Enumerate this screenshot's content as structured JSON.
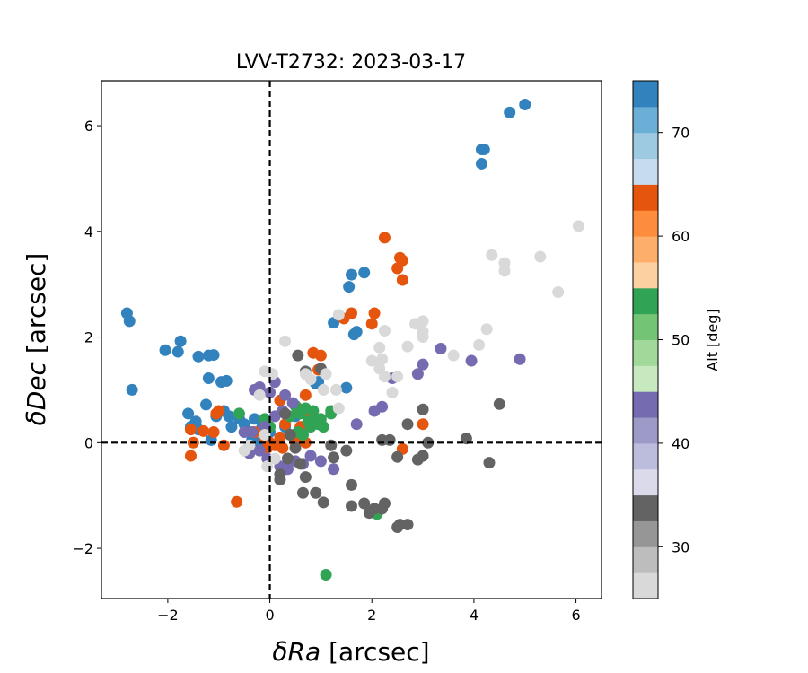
{
  "chart_data": {
    "type": "scatter",
    "title": "LVV-T2732: 2023-03-17",
    "xlabel_sym": "δRa",
    "xlabel_unit": " [arcsec]",
    "ylabel_sym": "δDec",
    "ylabel_unit": " [arcsec]",
    "xlim": [
      -3.3,
      6.5
    ],
    "ylim": [
      -2.95,
      6.85
    ],
    "xticks": [
      -2,
      0,
      2,
      4,
      6
    ],
    "yticks": [
      -2,
      0,
      2,
      4,
      6
    ],
    "xtick_labels": [
      "−2",
      "0",
      "2",
      "4",
      "6"
    ],
    "ytick_labels": [
      "−2",
      "0",
      "2",
      "4",
      "6"
    ],
    "reference_lines": {
      "x": 0,
      "y": 0,
      "style": "dashed"
    },
    "colorbar": {
      "label": "Alt [deg]",
      "range": [
        25,
        75
      ],
      "ticks": [
        30,
        40,
        50,
        60,
        70
      ],
      "tick_labels": [
        "30",
        "40",
        "50",
        "60",
        "70"
      ],
      "colormap": "tab20c",
      "bins": [
        "#d9d9d9",
        "#bdbdbd",
        "#969696",
        "#636363",
        "#dadaeb",
        "#bcbddc",
        "#9e9ac8",
        "#756bb1",
        "#c7e9c0",
        "#a1d99b",
        "#74c476",
        "#31a354",
        "#fdd0a2",
        "#fdae6b",
        "#fd8d3c",
        "#e6550d",
        "#c6dbef",
        "#9ecae1",
        "#6baed6",
        "#3182bd"
      ]
    },
    "series": [
      {
        "alt_group": "~70-75 (blue)",
        "color": "#3182bd",
        "points": [
          [
            5.0,
            6.4
          ],
          [
            4.7,
            6.25
          ],
          [
            4.15,
            5.55
          ],
          [
            4.2,
            5.55
          ],
          [
            4.15,
            5.28
          ],
          [
            1.85,
            3.22
          ],
          [
            1.6,
            3.18
          ],
          [
            1.55,
            2.95
          ],
          [
            1.65,
            2.05
          ],
          [
            1.7,
            2.1
          ],
          [
            1.25,
            2.27
          ],
          [
            -2.8,
            2.45
          ],
          [
            -2.75,
            2.3
          ],
          [
            -2.7,
            1.0
          ],
          [
            -2.05,
            1.75
          ],
          [
            -1.8,
            1.72
          ],
          [
            -1.75,
            1.92
          ],
          [
            -1.4,
            1.63
          ],
          [
            -1.2,
            1.65
          ],
          [
            -1.1,
            1.66
          ],
          [
            -1.2,
            1.22
          ],
          [
            -0.95,
            1.15
          ],
          [
            -0.85,
            1.17
          ],
          [
            -1.25,
            0.72
          ],
          [
            -1.05,
            0.5
          ],
          [
            -0.9,
            0.6
          ],
          [
            -0.8,
            0.5
          ],
          [
            -0.6,
            0.45
          ],
          [
            -1.6,
            0.55
          ],
          [
            -1.45,
            0.4
          ],
          [
            -1.55,
            0.3
          ],
          [
            -1.4,
            0.25
          ],
          [
            -1.15,
            0.05
          ],
          [
            -0.75,
            0.3
          ],
          [
            -0.5,
            0.35
          ],
          [
            -0.3,
            0.45
          ],
          [
            -0.15,
            0.3
          ],
          [
            -0.35,
            0.05
          ],
          [
            -0.2,
            0.0
          ],
          [
            0.0,
            0.2
          ],
          [
            0.3,
            0.3
          ],
          [
            0.5,
            0.5
          ],
          [
            0.9,
            1.12
          ],
          [
            0.95,
            1.15
          ],
          [
            1.5,
            1.04
          ]
        ]
      },
      {
        "alt_group": "~60-65 (orange)",
        "color": "#e6550d",
        "points": [
          [
            2.25,
            3.88
          ],
          [
            2.55,
            3.5
          ],
          [
            2.6,
            3.45
          ],
          [
            2.5,
            3.3
          ],
          [
            2.6,
            3.08
          ],
          [
            1.6,
            2.45
          ],
          [
            1.45,
            2.35
          ],
          [
            2.05,
            2.45
          ],
          [
            2.0,
            2.25
          ],
          [
            0.85,
            1.7
          ],
          [
            1.0,
            1.65
          ],
          [
            0.95,
            1.38
          ],
          [
            0.7,
            0.9
          ],
          [
            0.55,
            0.65
          ],
          [
            0.2,
            0.8
          ],
          [
            3.0,
            0.35
          ],
          [
            2.6,
            -0.12
          ],
          [
            -0.65,
            -1.12
          ],
          [
            -1.55,
            -0.25
          ],
          [
            -1.5,
            0.0
          ],
          [
            -1.55,
            0.25
          ],
          [
            -1.3,
            0.22
          ],
          [
            -1.1,
            0.2
          ],
          [
            -0.9,
            -0.05
          ],
          [
            -1.0,
            0.6
          ],
          [
            -1.05,
            0.55
          ],
          [
            -0.3,
            0.2
          ],
          [
            -0.1,
            0.1
          ],
          [
            0.0,
            0.0
          ],
          [
            0.1,
            -0.05
          ],
          [
            0.2,
            0.1
          ],
          [
            0.3,
            0.35
          ],
          [
            0.4,
            0.15
          ],
          [
            0.5,
            0.0
          ],
          [
            0.7,
            0.0
          ],
          [
            0.6,
            0.3
          ],
          [
            0.75,
            0.5
          ],
          [
            0.25,
            -0.1
          ],
          [
            -0.05,
            -0.1
          ]
        ]
      },
      {
        "alt_group": "~50-55 (green)",
        "color": "#31a354",
        "points": [
          [
            -0.6,
            0.55
          ],
          [
            -0.1,
            0.45
          ],
          [
            0.0,
            0.3
          ],
          [
            0.4,
            0.5
          ],
          [
            0.5,
            0.7
          ],
          [
            0.6,
            0.55
          ],
          [
            0.7,
            0.65
          ],
          [
            0.75,
            0.4
          ],
          [
            0.8,
            0.3
          ],
          [
            0.85,
            0.6
          ],
          [
            0.9,
            0.45
          ],
          [
            0.95,
            0.35
          ],
          [
            1.0,
            0.45
          ],
          [
            1.05,
            0.3
          ],
          [
            1.2,
            0.6
          ],
          [
            1.2,
            0.55
          ],
          [
            1.1,
            -2.5
          ],
          [
            2.1,
            -1.35
          ],
          [
            0.55,
            0.2
          ],
          [
            0.65,
            0.15
          ]
        ]
      },
      {
        "alt_group": "~40-45 (purple)",
        "color": "#756bb1",
        "points": [
          [
            3.35,
            1.78
          ],
          [
            3.95,
            1.55
          ],
          [
            4.9,
            1.58
          ],
          [
            3.0,
            1.48
          ],
          [
            2.9,
            1.3
          ],
          [
            2.4,
            1.22
          ],
          [
            2.2,
            0.68
          ],
          [
            2.05,
            0.6
          ],
          [
            1.7,
            0.35
          ],
          [
            0.1,
            1.15
          ],
          [
            -0.2,
            1.05
          ],
          [
            0.0,
            0.95
          ],
          [
            0.3,
            0.9
          ],
          [
            0.45,
            0.75
          ],
          [
            0.25,
            0.6
          ],
          [
            0.1,
            0.5
          ],
          [
            -0.1,
            0.3
          ],
          [
            -0.35,
            0.2
          ],
          [
            -0.5,
            0.2
          ],
          [
            -0.4,
            -0.2
          ],
          [
            -0.2,
            -0.15
          ],
          [
            -0.05,
            -0.3
          ],
          [
            0.2,
            -0.45
          ],
          [
            0.35,
            -0.5
          ],
          [
            0.5,
            -0.35
          ],
          [
            0.65,
            -0.4
          ],
          [
            0.8,
            -0.25
          ],
          [
            1.0,
            -0.35
          ],
          [
            1.25,
            -0.5
          ],
          [
            -0.3,
            1.0
          ]
        ]
      },
      {
        "alt_group": "~30-35 (dark gray)",
        "color": "#636363",
        "points": [
          [
            4.5,
            0.73
          ],
          [
            3.85,
            0.08
          ],
          [
            4.3,
            -0.38
          ],
          [
            3.0,
            0.63
          ],
          [
            3.1,
            0.0
          ],
          [
            2.7,
            0.35
          ],
          [
            2.35,
            0.05
          ],
          [
            2.2,
            0.05
          ],
          [
            2.5,
            -0.27
          ],
          [
            3.0,
            -0.25
          ],
          [
            2.9,
            -0.32
          ],
          [
            2.7,
            -1.55
          ],
          [
            2.55,
            -1.55
          ],
          [
            2.5,
            -1.6
          ],
          [
            2.25,
            -1.15
          ],
          [
            2.2,
            -1.25
          ],
          [
            2.05,
            -1.25
          ],
          [
            1.95,
            -1.33
          ],
          [
            1.85,
            -1.15
          ],
          [
            1.6,
            -0.8
          ],
          [
            1.6,
            -1.2
          ],
          [
            1.5,
            -0.15
          ],
          [
            1.2,
            -0.05
          ],
          [
            1.25,
            -0.28
          ],
          [
            0.9,
            -0.95
          ],
          [
            1.05,
            -1.13
          ],
          [
            0.7,
            -0.65
          ],
          [
            0.65,
            -0.95
          ],
          [
            0.6,
            -0.4
          ],
          [
            0.5,
            -0.1
          ],
          [
            0.35,
            -0.3
          ],
          [
            0.2,
            -0.7
          ],
          [
            0.2,
            -0.6
          ],
          [
            0.4,
            0.15
          ],
          [
            0.3,
            0.55
          ],
          [
            0.55,
            1.65
          ],
          [
            1.0,
            1.4
          ],
          [
            0.7,
            1.35
          ]
        ]
      },
      {
        "alt_group": "~25-30 (light gray)",
        "color": "#d9d9d9",
        "points": [
          [
            6.05,
            4.1
          ],
          [
            4.35,
            3.55
          ],
          [
            4.6,
            3.4
          ],
          [
            4.6,
            3.25
          ],
          [
            5.3,
            3.52
          ],
          [
            5.65,
            2.85
          ],
          [
            4.25,
            2.15
          ],
          [
            4.1,
            1.85
          ],
          [
            3.6,
            1.65
          ],
          [
            3.0,
            2.3
          ],
          [
            2.95,
            2.25
          ],
          [
            2.85,
            2.25
          ],
          [
            3.0,
            2.1
          ],
          [
            3.0,
            2.0
          ],
          [
            2.7,
            1.82
          ],
          [
            2.25,
            2.12
          ],
          [
            2.15,
            1.8
          ],
          [
            2.2,
            1.58
          ],
          [
            2.0,
            1.55
          ],
          [
            2.15,
            1.4
          ],
          [
            2.25,
            1.25
          ],
          [
            2.4,
            0.95
          ],
          [
            2.5,
            1.25
          ],
          [
            1.1,
            1.3
          ],
          [
            1.05,
            1.0
          ],
          [
            0.8,
            1.2
          ],
          [
            1.3,
            1.0
          ],
          [
            1.35,
            0.65
          ],
          [
            1.35,
            2.42
          ],
          [
            0.3,
            1.92
          ],
          [
            0.05,
            1.3
          ],
          [
            -0.1,
            1.35
          ],
          [
            -0.2,
            0.9
          ],
          [
            -0.4,
            -0.05
          ],
          [
            -0.5,
            -0.15
          ],
          [
            -0.05,
            -0.45
          ],
          [
            0.1,
            -0.3
          ],
          [
            -0.1,
            0.15
          ],
          [
            0.7,
            1.3
          ]
        ]
      }
    ]
  }
}
